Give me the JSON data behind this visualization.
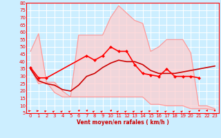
{
  "xlabel": "Vent moyen/en rafales ( km/h )",
  "x": [
    0,
    1,
    2,
    3,
    4,
    5,
    6,
    7,
    8,
    9,
    10,
    11,
    12,
    13,
    14,
    15,
    16,
    17,
    18,
    19,
    20,
    21,
    22,
    23
  ],
  "rafales_top": [
    47,
    59,
    26,
    26,
    20,
    16,
    58,
    58,
    58,
    58,
    70,
    78,
    73,
    68,
    66,
    47,
    50,
    55,
    55,
    55,
    46,
    10,
    10,
    8
  ],
  "rafales_bot": [
    35,
    25,
    26,
    19,
    16,
    16,
    16,
    16,
    16,
    16,
    16,
    16,
    16,
    16,
    16,
    11,
    11,
    10,
    10,
    10,
    8,
    8,
    8,
    7
  ],
  "vent_max": [
    36,
    29,
    29,
    null,
    null,
    null,
    null,
    44,
    41,
    44,
    50,
    47,
    47,
    38,
    32,
    31,
    30,
    35,
    30,
    30,
    30,
    29,
    null,
    null
  ],
  "vent_moyen": [
    35,
    27,
    25,
    24,
    21,
    20,
    24,
    30,
    32,
    36,
    39,
    41,
    40,
    40,
    38,
    34,
    32,
    32,
    32,
    33,
    34,
    35,
    36,
    37
  ],
  "ylim": [
    5,
    80
  ],
  "xlim": [
    -0.5,
    23.5
  ],
  "yticks": [
    5,
    10,
    15,
    20,
    25,
    30,
    35,
    40,
    45,
    50,
    55,
    60,
    65,
    70,
    75,
    80
  ],
  "xticks": [
    0,
    1,
    2,
    3,
    4,
    5,
    6,
    7,
    8,
    9,
    10,
    11,
    12,
    13,
    14,
    15,
    16,
    17,
    18,
    19,
    20,
    21,
    22,
    23
  ],
  "bg_color": "#cceeff",
  "grid_color": "#ffffff",
  "line_pink": "#ff9999",
  "line_red": "#ff0000",
  "line_darkred": "#cc0000",
  "xlabel_color": "#cc0000",
  "arrow_angles_deg": [
    0,
    0,
    15,
    30,
    30,
    30,
    45,
    45,
    30,
    30,
    45,
    30,
    30,
    30,
    30,
    15,
    15,
    30,
    30,
    30,
    30,
    45,
    60,
    90
  ]
}
